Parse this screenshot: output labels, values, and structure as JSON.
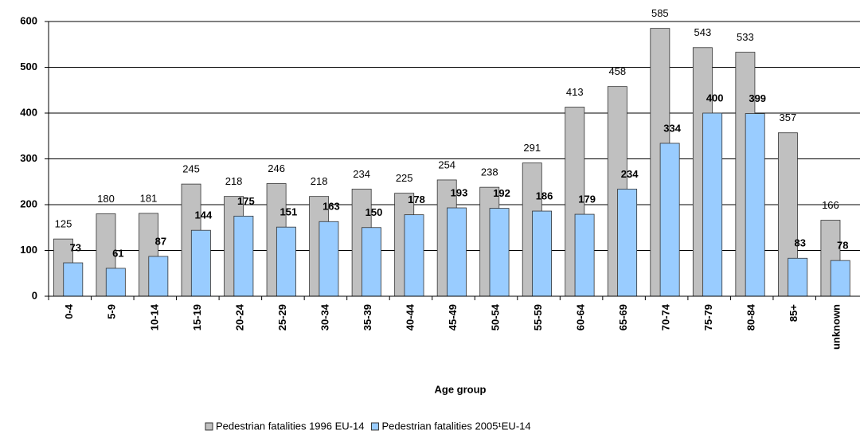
{
  "chart_data": {
    "type": "bar",
    "x_label": "Age group",
    "categories": [
      "0-4",
      "5-9",
      "10-14",
      "15-19",
      "20-24",
      "25-29",
      "30-34",
      "35-39",
      "40-44",
      "45-49",
      "50-54",
      "55-59",
      "60-64",
      "65-69",
      "70-74",
      "75-79",
      "80-84",
      "85+",
      "unknown"
    ],
    "series": [
      {
        "name": "Pedestrian fatalities 1996 EU-14",
        "color": "#c0c0c0",
        "values": [
          125,
          180,
          181,
          245,
          218,
          246,
          218,
          234,
          225,
          254,
          238,
          291,
          413,
          458,
          585,
          543,
          533,
          357,
          166
        ]
      },
      {
        "name": "Pedestrian fatalities 2005¹EU-14",
        "color": "#99ccff",
        "values": [
          73,
          61,
          87,
          144,
          175,
          151,
          163,
          150,
          178,
          193,
          192,
          186,
          179,
          234,
          334,
          400,
          399,
          83,
          78
        ]
      }
    ],
    "ylim": [
      0,
      600
    ],
    "yticks": [
      0,
      100,
      200,
      300,
      400,
      500,
      600
    ],
    "grid": true,
    "legend": "bottom"
  }
}
